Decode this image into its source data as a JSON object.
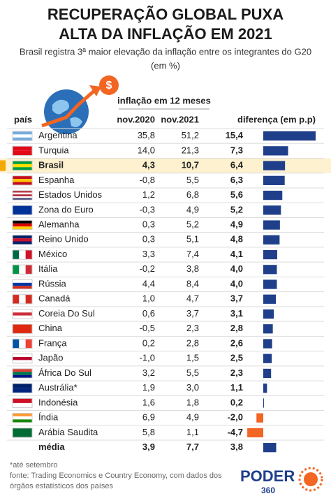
{
  "header": {
    "title_line1": "RECUPERAÇÃO GLOBAL PUXA",
    "title_line2": "ALTA DA INFLAÇÃO EM 2021",
    "subtitle_line1": "Brasil registra 3ª maior elevação da inflação entre os integrantes do G20",
    "subtitle_line2": "(em %)"
  },
  "table": {
    "group_header": "inflação em 12 meses",
    "columns": [
      "país",
      "nov.2020",
      "nov.2021",
      "diferença (em p.p)"
    ],
    "rows": [
      [
        "Argentina",
        "35,8",
        "51,2",
        {
          "value": 15.4,
          "label": "15,4"
        }
      ],
      [
        "Turquia",
        "14,0",
        "21,3",
        {
          "value": 7.3,
          "label": "7,3"
        }
      ],
      [
        "Brasil",
        "4,3",
        "10,7",
        {
          "value": 6.4,
          "label": "6,4"
        }
      ],
      [
        "Espanha",
        "-0,8",
        "5,5",
        {
          "value": 6.3,
          "label": "6,3"
        }
      ],
      [
        "Estados Unidos",
        "1,2",
        "6,8",
        {
          "value": 5.6,
          "label": "5,6"
        }
      ],
      [
        "Zona do Euro",
        "-0,3",
        "4,9",
        {
          "value": 5.2,
          "label": "5,2"
        }
      ],
      [
        "Alemanha",
        "0,3",
        "5,2",
        {
          "value": 4.9,
          "label": "4,9"
        }
      ],
      [
        "Reino Unido",
        "0,3",
        "5,1",
        {
          "value": 4.8,
          "label": "4,8"
        }
      ],
      [
        "México",
        "3,3",
        "7,4",
        {
          "value": 4.1,
          "label": "4,1"
        }
      ],
      [
        "Itália",
        "-0,2",
        "3,8",
        {
          "value": 4.0,
          "label": "4,0"
        }
      ],
      [
        "Rússia",
        "4,4",
        "8,4",
        {
          "value": 4.0,
          "label": "4,0"
        }
      ],
      [
        "Canadá",
        "1,0",
        "4,7",
        {
          "value": 3.7,
          "label": "3,7"
        }
      ],
      [
        "Coreia Do Sul",
        "0,6",
        "3,7",
        {
          "value": 3.1,
          "label": "3,1"
        }
      ],
      [
        "China",
        "-0,5",
        "2,3",
        {
          "value": 2.8,
          "label": "2,8"
        }
      ],
      [
        "França",
        "0,2",
        "2,8",
        {
          "value": 2.6,
          "label": "2,6"
        }
      ],
      [
        "Japão",
        "-1,0",
        "1,5",
        {
          "value": 2.5,
          "label": "2,5"
        }
      ],
      [
        "África Do Sul",
        "3,2",
        "5,5",
        {
          "value": 2.3,
          "label": "2,3"
        }
      ],
      [
        "Austrália*",
        "1,9",
        "3,0",
        {
          "value": 1.1,
          "label": "1,1"
        }
      ],
      [
        "Indonésia",
        "1,6",
        "1,8",
        {
          "value": 0.2,
          "label": "0,2"
        }
      ],
      [
        "Índia",
        "6,9",
        "4,9",
        {
          "value": -2.0,
          "label": "-2,0"
        }
      ],
      [
        "Arábia Saudita",
        "5,8",
        "1,1",
        {
          "value": -4.7,
          "label": "-4,7"
        }
      ],
      [
        "média",
        "3,9",
        "7,7",
        {
          "value": 3.8,
          "label": "3,8"
        }
      ]
    ],
    "highlight_row": 2,
    "bar_color": "#1f3f8a",
    "negative_color": "#f26522"
  },
  "footer": {
    "note": "*até setembro",
    "source_line1": "fonte: Trading Economics e Country Economy, com dados dos",
    "source_line2": "órgãos estatísticos dos países",
    "logo_word": "PODER",
    "logo_number": "360"
  }
}
